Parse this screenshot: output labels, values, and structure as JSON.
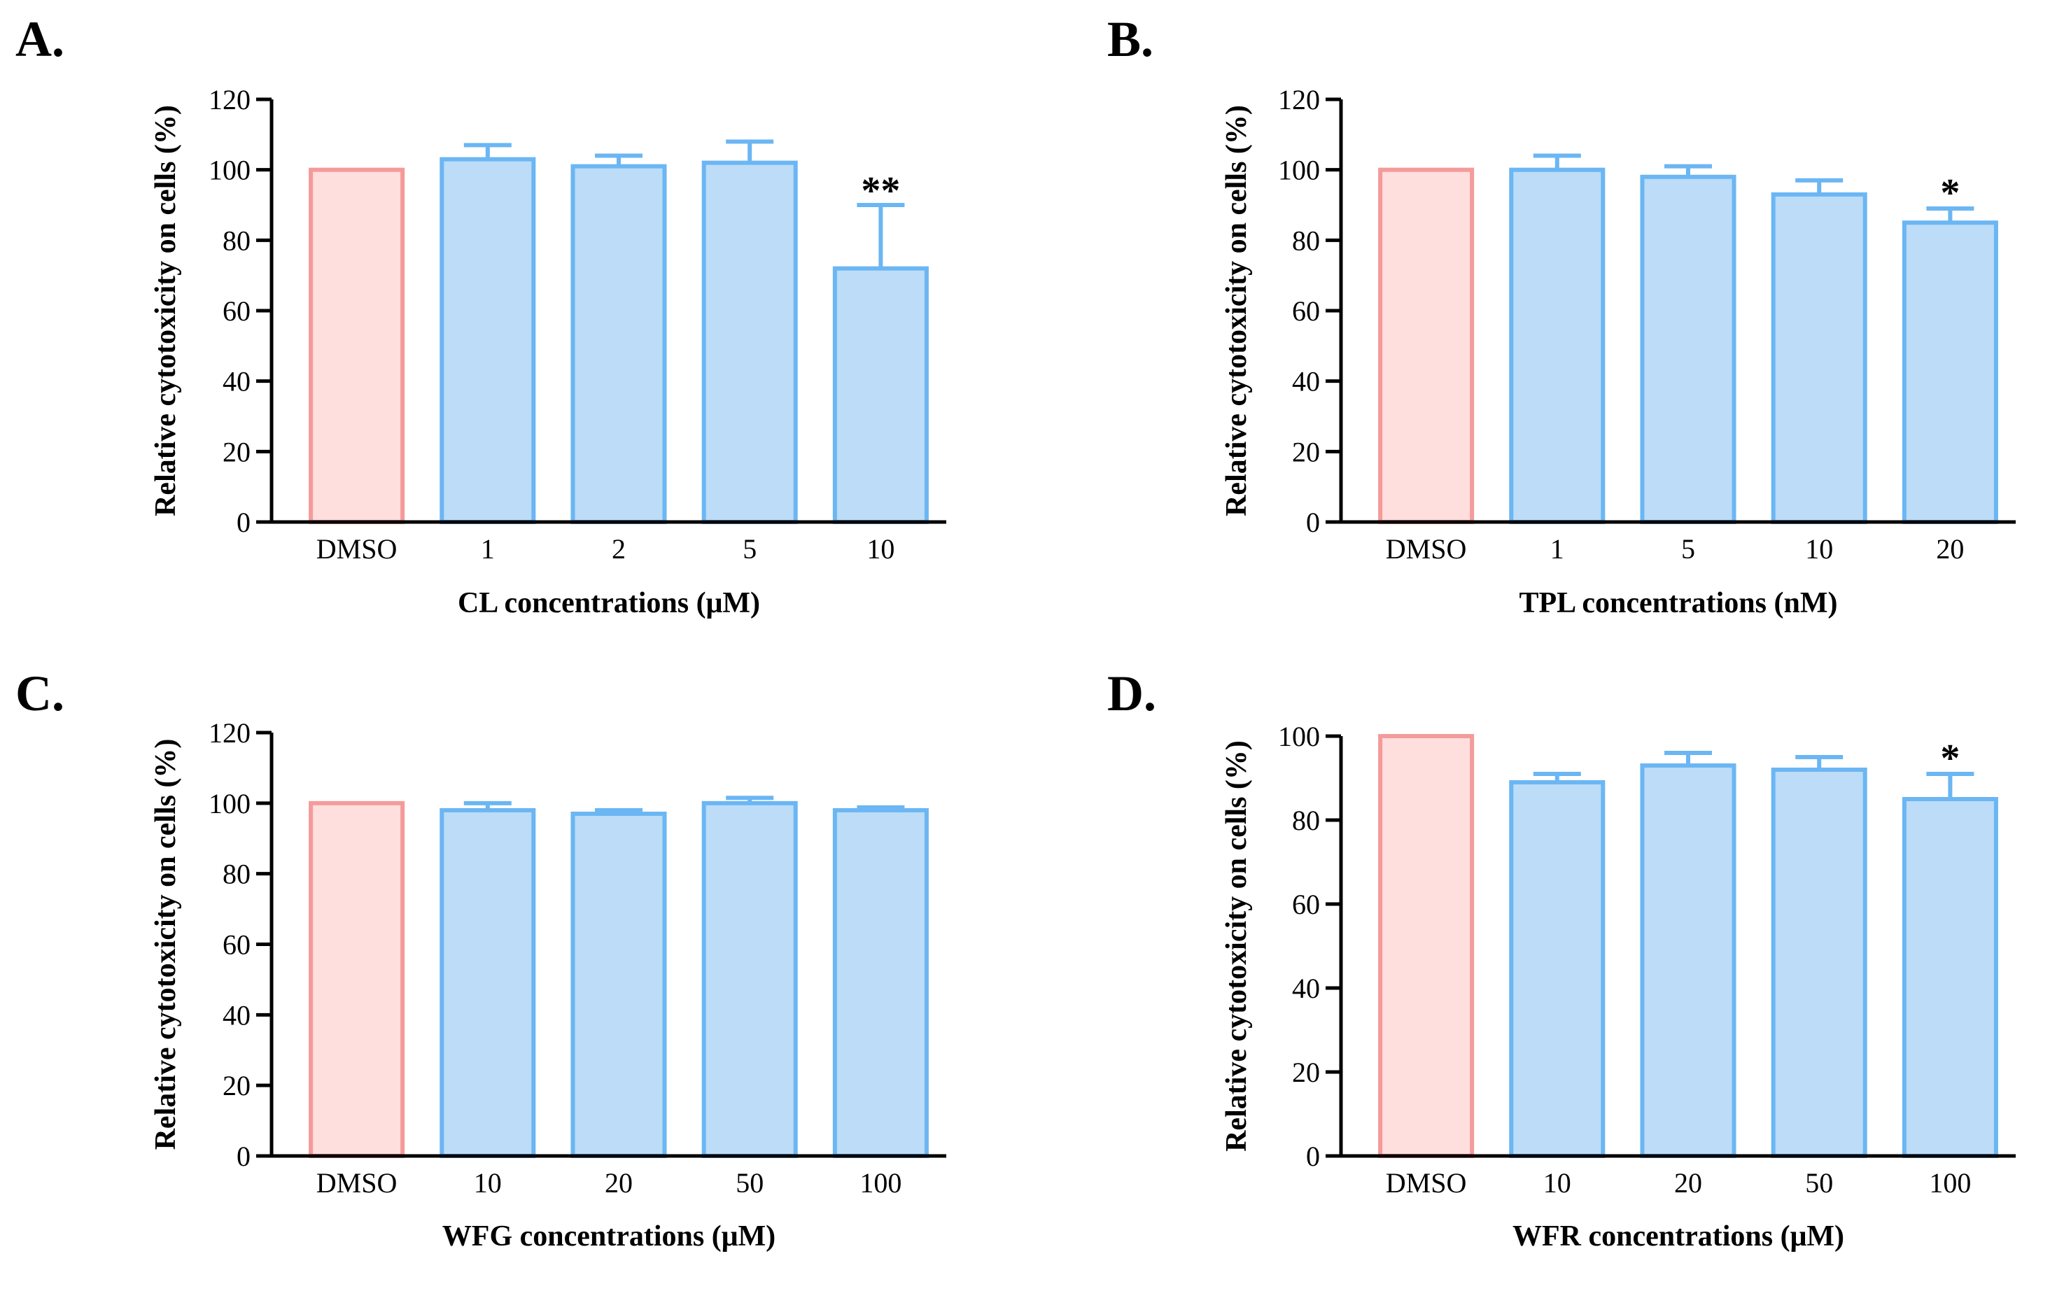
{
  "colors": {
    "control_fill": "#ffdede",
    "control_stroke": "#f59a9a",
    "treat_fill": "#bcdcf7",
    "treat_stroke": "#6bb6f3",
    "axis": "#000000"
  },
  "chart_data": [
    {
      "type": "bar",
      "panel": "A.",
      "categories": [
        "DMSO",
        "1",
        "2",
        "5",
        "10"
      ],
      "values": [
        100,
        103,
        101,
        102,
        72
      ],
      "errors": [
        0,
        4,
        3,
        6,
        18
      ],
      "annotations": [
        "",
        "",
        "",
        "",
        "**"
      ],
      "xlabel": "CL concentrations  (μM)",
      "ylabel": "Relative cytotoxicity on cells (%)",
      "ylim": [
        0,
        120
      ],
      "yticks": [
        "0",
        "20",
        "40",
        "60",
        "80",
        "100",
        "120"
      ]
    },
    {
      "type": "bar",
      "panel": "B.",
      "categories": [
        "DMSO",
        "1",
        "5",
        "10",
        "20"
      ],
      "values": [
        100,
        100,
        98,
        93,
        85
      ],
      "errors": [
        0,
        4,
        3,
        4,
        4
      ],
      "annotations": [
        "",
        "",
        "",
        "",
        "*"
      ],
      "xlabel": "TPL concentrations  (nM)",
      "ylabel": "Relative cytotoxicity on cells (%)",
      "ylim": [
        0,
        120
      ],
      "yticks": [
        "0",
        "20",
        "40",
        "60",
        "80",
        "100",
        "120"
      ]
    },
    {
      "type": "bar",
      "panel": "C.",
      "categories": [
        "DMSO",
        "10",
        "20",
        "50",
        "100"
      ],
      "values": [
        100,
        98,
        97,
        100,
        98
      ],
      "errors": [
        0,
        2,
        1,
        1.5,
        0.8
      ],
      "annotations": [
        "",
        "",
        "",
        "",
        ""
      ],
      "xlabel": "WFG concentrations  (μM)",
      "ylabel": "Relative cytotoxicity on cells (%)",
      "ylim": [
        0,
        120
      ],
      "yticks": [
        "0",
        "20",
        "40",
        "60",
        "80",
        "100",
        "120"
      ]
    },
    {
      "type": "bar",
      "panel": "D.",
      "categories": [
        "DMSO",
        "10",
        "20",
        "50",
        "100"
      ],
      "values": [
        100,
        89,
        93,
        92,
        85
      ],
      "errors": [
        0,
        2,
        3,
        3,
        6
      ],
      "annotations": [
        "",
        "",
        "",
        "",
        "*"
      ],
      "xlabel": "WFR concentrations  (μM)",
      "ylabel": "Relative cytotoxicity on cells (%)",
      "ylim": [
        0,
        100
      ],
      "yticks": [
        "0",
        "20",
        "40",
        "60",
        "80",
        "100"
      ]
    }
  ]
}
